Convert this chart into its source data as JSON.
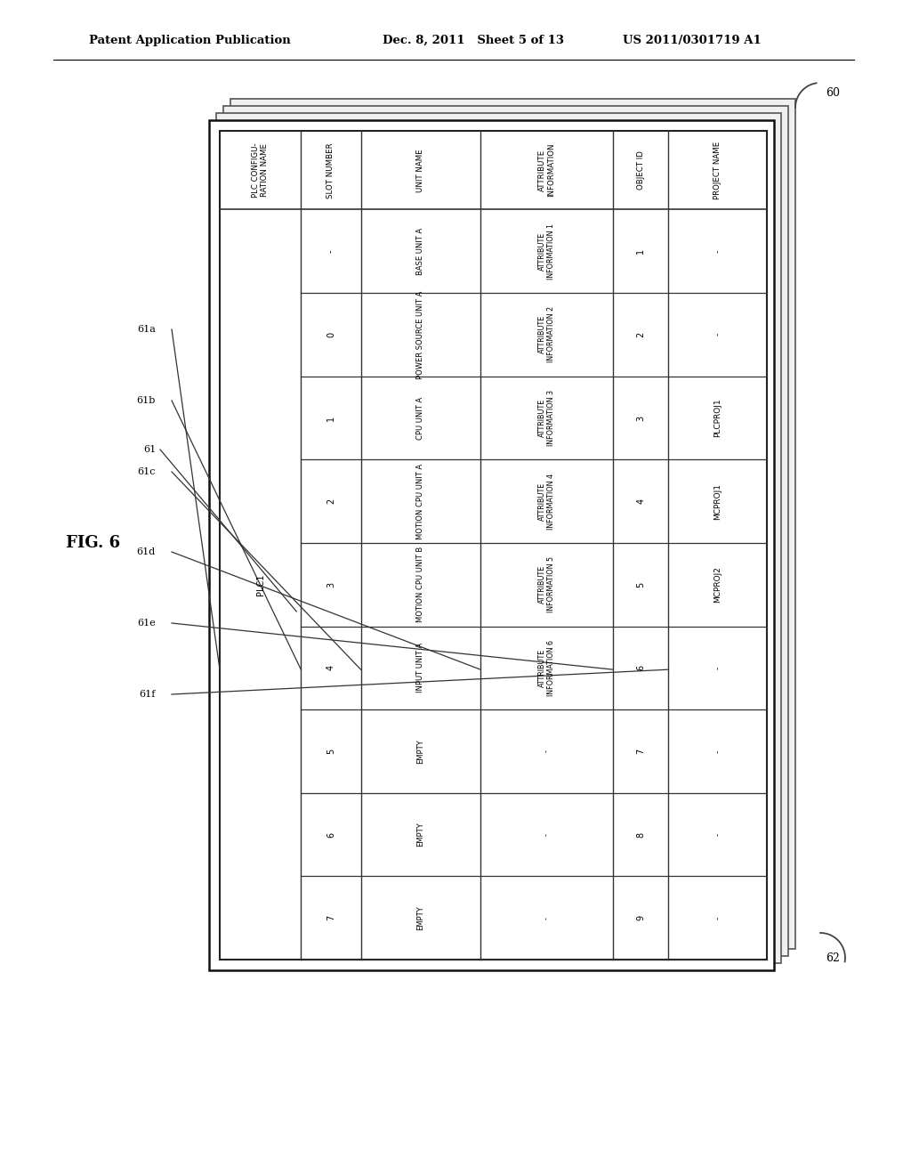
{
  "header_text_left": "Patent Application Publication",
  "header_text_mid": "Dec. 8, 2011   Sheet 5 of 13",
  "header_text_right": "US 2011/0301719 A1",
  "fig_label": "FIG. 6",
  "bg_color": "#ffffff",
  "label_60": "60",
  "label_62": "62",
  "label_61": "61",
  "label_61a": "61a",
  "label_61b": "61b",
  "label_61c": "61c",
  "label_61d": "61d",
  "label_61e": "61e",
  "label_61f": "61f",
  "col_headers": [
    "PLC CONFIGU-\nRATION NAME",
    "SLOT NUMBER",
    "UNIT NAME",
    "ATTRIBUTE\nINFORMATION",
    "OBJECT ID",
    "PROJECT NAME"
  ],
  "col_widths_rel": [
    0.95,
    0.7,
    1.4,
    1.55,
    0.65,
    1.15
  ],
  "slot_numbers": [
    "-",
    "0",
    "1",
    "2",
    "3",
    "4",
    "5",
    "6",
    "7"
  ],
  "unit_names": [
    "BASE UNIT A",
    "POWER SOURCE UNIT A",
    "CPU UNIT A",
    "MOTION CPU UNIT A",
    "MOTION CPU UNIT B",
    "INPUT UNIT A",
    "EMPTY",
    "EMPTY",
    "EMPTY"
  ],
  "attr_info": [
    "ATTRIBUTE\nINFORMATION 1",
    "ATTRIBUTE\nINFORMATION 2",
    "ATTRIBUTE\nINFORMATION 3",
    "ATTRIBUTE\nINFORMATION 4",
    "ATTRIBUTE\nINFORMATION 5",
    "ATTRIBUTE\nINFORMATION 6",
    "-",
    "-",
    "-"
  ],
  "obj_ids": [
    "1",
    "2",
    "3",
    "4",
    "5",
    "6",
    "7",
    "8",
    "9"
  ],
  "proj_names": [
    "-",
    "-",
    "PLCPROJ1",
    "MCPROJ1",
    "MCPROJ2",
    "-",
    "-",
    "-",
    "-"
  ],
  "plc_config_name": "PLC1",
  "n_data_rows": 9
}
